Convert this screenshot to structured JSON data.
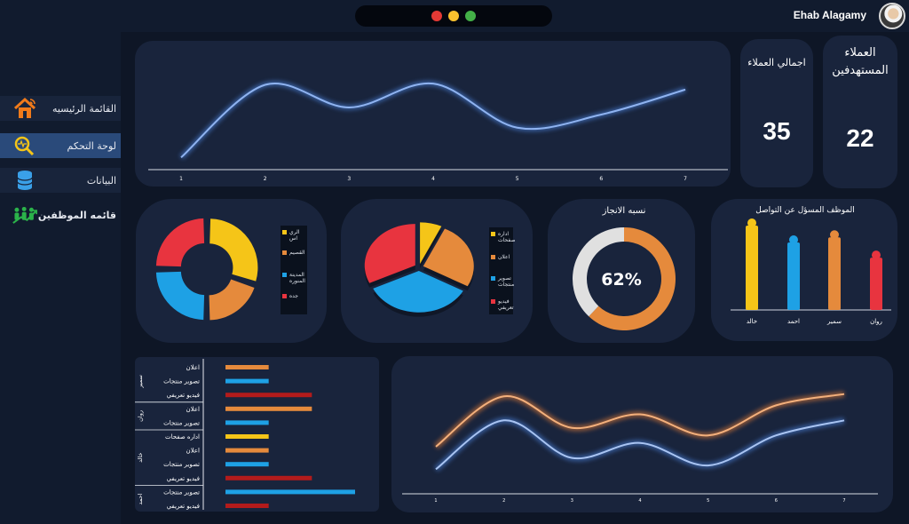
{
  "window": {
    "traffic_lights": [
      "#e53935",
      "#f9c12e",
      "#43b047"
    ]
  },
  "user": {
    "name": "Ehab Alagamy"
  },
  "sidebar": {
    "items": [
      {
        "label": "القائمة الرئيسيه",
        "icon": "home-icon"
      },
      {
        "label": "لوحة التحكم",
        "icon": "magnifier-chart-icon"
      },
      {
        "label": "البيانات",
        "icon": "database-icon"
      },
      {
        "label": "قائمه الموظفين",
        "icon": "team-growth-icon"
      }
    ]
  },
  "stats": {
    "total_clients": {
      "title": "اجمالي العملاء",
      "value": "35"
    },
    "target_clients": {
      "title": "العملاء المستهدفين",
      "value": "22"
    }
  },
  "colors": {
    "line_blue": "#4a7fd6",
    "line_orange": "#e07b39",
    "yellow": "#f5c518",
    "orange": "#e58a3c",
    "blue": "#1ea1e5",
    "red": "#e8343f",
    "dark_red": "#b31b1b",
    "grey": "#e0e0e0"
  },
  "chart_data": [
    {
      "type": "line",
      "x": [
        1,
        2,
        3,
        4,
        5,
        6,
        7
      ],
      "series": [
        {
          "values": [
            11,
            72,
            53,
            73,
            36,
            47,
            68
          ]
        }
      ],
      "ylim": [
        0,
        100
      ]
    },
    {
      "type": "pie",
      "variant": "doughnut",
      "slices": [
        {
          "label": "الري اس",
          "value": 30
        },
        {
          "label": "القصيم",
          "value": 20
        },
        {
          "label": "المدينة المنوره",
          "value": 25
        },
        {
          "label": "جده",
          "value": 25
        }
      ]
    },
    {
      "type": "pie",
      "slices": [
        {
          "label": "اداره صفحات",
          "value": 7
        },
        {
          "label": "اعلان",
          "value": 26
        },
        {
          "label": "تصوير منتجات",
          "value": 35
        },
        {
          "label": "فيديو تعريفي",
          "value": 32
        }
      ]
    },
    {
      "type": "pie",
      "variant": "doughnut",
      "title": "نسبه الانجاز",
      "value_label": "62%",
      "slices": [
        {
          "value": 62
        },
        {
          "value": 38
        }
      ]
    },
    {
      "type": "bar",
      "title": "الموظف المسؤل عن التواصل",
      "categories": [
        "خالد",
        "احمد",
        "سمير",
        "روان"
      ],
      "values": [
        100,
        80,
        86,
        62
      ],
      "ylim": [
        0,
        100
      ]
    },
    {
      "type": "bar",
      "orientation": "horizontal",
      "groups": [
        {
          "name": "سمير",
          "rows": [
            {
              "label": "اعلان",
              "value": 1,
              "color": "orange"
            },
            {
              "label": "تصوير منتجات",
              "value": 1,
              "color": "blue"
            },
            {
              "label": "فيديو تعريفي",
              "value": 2,
              "color": "dark_red"
            }
          ]
        },
        {
          "name": "روان",
          "rows": [
            {
              "label": "اعلان",
              "value": 2,
              "color": "orange"
            },
            {
              "label": "تصوير منتجات",
              "value": 1,
              "color": "blue"
            }
          ]
        },
        {
          "name": "خالد",
          "rows": [
            {
              "label": "اداره صفحات",
              "value": 1,
              "color": "yellow"
            },
            {
              "label": "اعلان",
              "value": 1,
              "color": "orange"
            },
            {
              "label": "تصوير منتجات",
              "value": 1,
              "color": "blue"
            },
            {
              "label": "فيديو تعريفي",
              "value": 2,
              "color": "dark_red"
            }
          ]
        },
        {
          "name": "احمد",
          "rows": [
            {
              "label": "تصوير منتجات",
              "value": 3,
              "color": "blue"
            },
            {
              "label": "فيديو تعريفي",
              "value": 1,
              "color": "dark_red"
            }
          ]
        }
      ],
      "xlim": [
        0,
        3
      ]
    },
    {
      "type": "line",
      "x": [
        1,
        2,
        3,
        4,
        5,
        6,
        7
      ],
      "series": [
        {
          "values": [
            5,
            72,
            30,
            48,
            20,
            60,
            75
          ]
        },
        {
          "values": [
            -25,
            40,
            -10,
            10,
            -20,
            20,
            40
          ]
        }
      ],
      "ylim": [
        -40,
        90
      ]
    }
  ]
}
